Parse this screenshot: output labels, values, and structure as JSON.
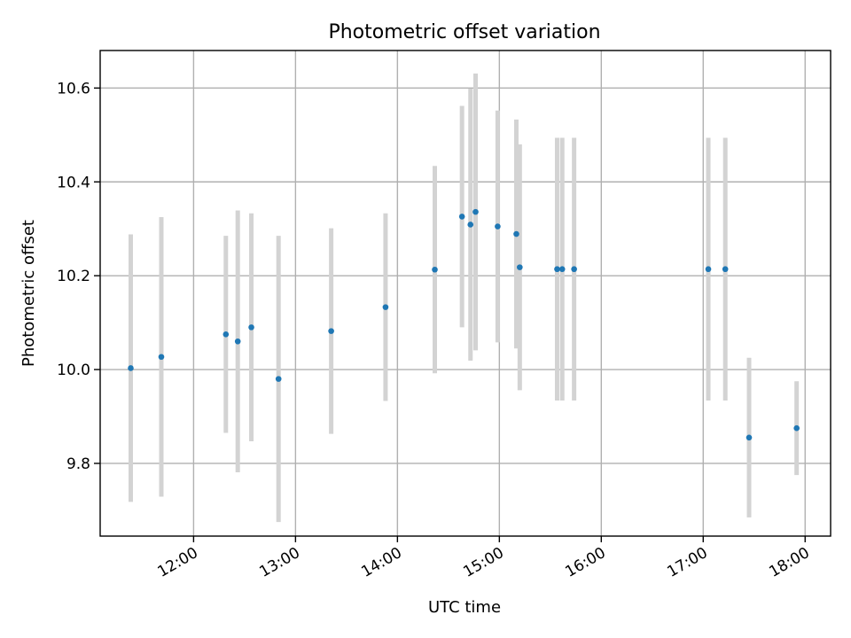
{
  "chart_data": {
    "type": "scatter",
    "title": "Photometric offset variation",
    "xlabel": "UTC time",
    "ylabel": "Photometric offset",
    "x_unit": "time",
    "xlim": [
      "11:05",
      "18:15"
    ],
    "ylim": [
      9.645,
      10.68
    ],
    "x_ticks": [
      "12:00",
      "13:00",
      "14:00",
      "15:00",
      "16:00",
      "17:00",
      "18:00"
    ],
    "y_ticks": [
      9.8,
      10.0,
      10.2,
      10.4,
      10.6
    ],
    "y_tick_labels": [
      "9.8",
      "10.0",
      "10.2",
      "10.4",
      "10.6"
    ],
    "grid": true,
    "legend": "none",
    "colors": {
      "points": "#1f77b4",
      "error_bars": "#d3d3d3"
    },
    "series": [
      {
        "points": [
          {
            "x": "11:23",
            "y": 10.003,
            "yerr": 0.285
          },
          {
            "x": "11:41",
            "y": 10.027,
            "yerr": 0.298
          },
          {
            "x": "12:19",
            "y": 10.075,
            "yerr": 0.21
          },
          {
            "x": "12:26",
            "y": 10.06,
            "yerr": 0.279
          },
          {
            "x": "12:34",
            "y": 10.09,
            "yerr": 0.243
          },
          {
            "x": "12:50",
            "y": 9.98,
            "yerr": 0.305
          },
          {
            "x": "13:21",
            "y": 10.082,
            "yerr": 0.219
          },
          {
            "x": "13:53",
            "y": 10.133,
            "yerr": 0.2
          },
          {
            "x": "14:22",
            "y": 10.213,
            "yerr": 0.221
          },
          {
            "x": "14:38",
            "y": 10.326,
            "yerr": 0.236
          },
          {
            "x": "14:43",
            "y": 10.309,
            "yerr": 0.29
          },
          {
            "x": "14:46",
            "y": 10.336,
            "yerr": 0.295
          },
          {
            "x": "14:59",
            "y": 10.305,
            "yerr": 0.247
          },
          {
            "x": "15:10",
            "y": 10.289,
            "yerr": 0.244
          },
          {
            "x": "15:12",
            "y": 10.218,
            "yerr": 0.262
          },
          {
            "x": "15:34",
            "y": 10.214,
            "yerr": 0.28
          },
          {
            "x": "15:37",
            "y": 10.214,
            "yerr": 0.28
          },
          {
            "x": "15:44",
            "y": 10.214,
            "yerr": 0.28
          },
          {
            "x": "17:03",
            "y": 10.214,
            "yerr": 0.28
          },
          {
            "x": "17:13",
            "y": 10.214,
            "yerr": 0.28
          },
          {
            "x": "17:27",
            "y": 9.855,
            "yerr": 0.17
          },
          {
            "x": "17:55",
            "y": 9.875,
            "yerr": 0.1
          }
        ]
      }
    ]
  }
}
